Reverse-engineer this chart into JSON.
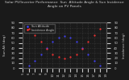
{
  "title": "Solar PV/Inverter Performance  Sun  Altitude Angle & Sun Incidence Angle on PV Panels",
  "left_ylabel": "Sun Alt (deg)",
  "right_ylabel": "Incidence (deg)",
  "line1_color": "#4444ff",
  "line2_color": "#ff3333",
  "x_hours": [
    5,
    6,
    7,
    8,
    9,
    10,
    11,
    12,
    13,
    14,
    15,
    16,
    17,
    18,
    19
  ],
  "sun_altitude": [
    0,
    5,
    15,
    28,
    40,
    52,
    60,
    63,
    60,
    52,
    40,
    28,
    15,
    5,
    0
  ],
  "incidence_angle": [
    90,
    78,
    65,
    52,
    38,
    28,
    22,
    20,
    22,
    28,
    38,
    52,
    65,
    78,
    90
  ],
  "ylim_left": [
    0,
    90
  ],
  "ylim_right": [
    0,
    90
  ],
  "xlim": [
    5,
    19
  ],
  "background": "#1a1a1a",
  "plot_bg": "#1a1a1a",
  "grid_color": "#555555",
  "title_fontsize": 3.2,
  "tick_fontsize": 2.8,
  "label_fontsize": 3.0,
  "legend_fontsize": 2.5,
  "text_color": "#cccccc",
  "yticks_left": [
    0,
    10,
    20,
    30,
    40,
    50,
    60,
    70,
    80,
    90
  ],
  "yticks_right": [
    0,
    10,
    20,
    30,
    40,
    50,
    60,
    70,
    80,
    90
  ]
}
